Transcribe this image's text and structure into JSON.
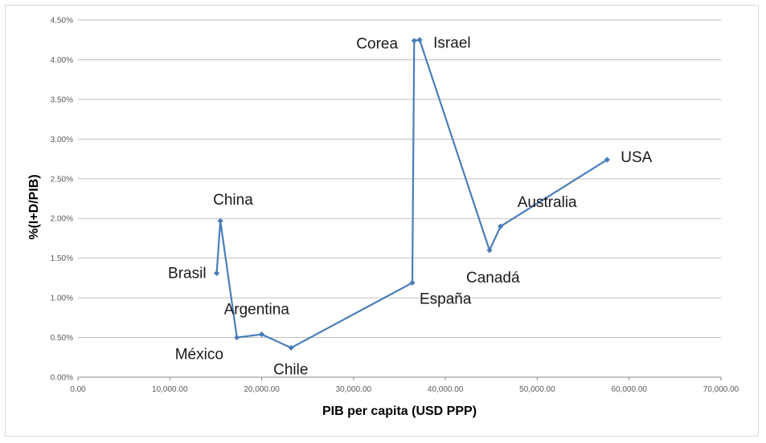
{
  "chart_data": {
    "type": "scatter",
    "title": "",
    "xlabel": "PIB per capita (USD PPP)",
    "ylabel": "%(I+D/PIB)",
    "xlim": [
      0,
      70000
    ],
    "ylim": [
      0,
      0.045
    ],
    "x_ticks": [
      "0.00",
      "10,000.00",
      "20,000.00",
      "30,000.00",
      "40,000.00",
      "50,000.00",
      "60,000.00",
      "70,000.00"
    ],
    "y_ticks": [
      "0.00%",
      "0.50%",
      "1.00%",
      "1.50%",
      "2.00%",
      "2.50%",
      "3.00%",
      "3.50%",
      "4.00%",
      "4.50%"
    ],
    "grid": "horizontal",
    "line_color": "#4a7ebb",
    "series": [
      {
        "points": [
          {
            "label": "Brasil",
            "x": 15100,
            "y": 0.0131
          },
          {
            "label": "China",
            "x": 15500,
            "y": 0.0197
          },
          {
            "label": "México",
            "x": 17300,
            "y": 0.005
          },
          {
            "label": "Argentina",
            "x": 20000,
            "y": 0.0054
          },
          {
            "label": "Chile",
            "x": 23200,
            "y": 0.0037
          },
          {
            "label": "España",
            "x": 36400,
            "y": 0.0119
          },
          {
            "label": "Corea",
            "x": 36600,
            "y": 0.0424
          },
          {
            "label": "Israel",
            "x": 37200,
            "y": 0.0425
          },
          {
            "label": "Canadá",
            "x": 44800,
            "y": 0.016
          },
          {
            "label": "Australia",
            "x": 46000,
            "y": 0.019
          },
          {
            "label": "USA",
            "x": 57600,
            "y": 0.0274
          }
        ]
      }
    ]
  }
}
